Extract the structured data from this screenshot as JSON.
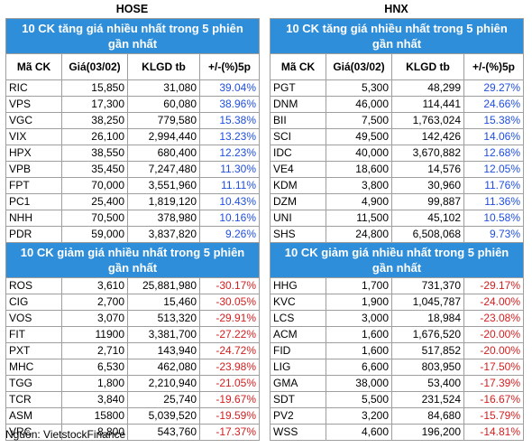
{
  "colors": {
    "title_bg": "#2f8ed9",
    "up": "#1f4fe0",
    "down": "#d42020"
  },
  "hose": {
    "name": "HOSE",
    "gain_title": "10 CK tăng giá nhiều nhất trong 5 phiên gần nhất",
    "loss_title": "10 CK giảm giá nhiều nhất trong 5 phiên gần nhất",
    "headers": [
      "Mã CK",
      "Giá(03/02)",
      "KLGD tb",
      "+/-(%)5p"
    ],
    "gainers": [
      [
        "RIC",
        "15,850",
        "31,080",
        "39.04%"
      ],
      [
        "VPS",
        "17,300",
        "60,080",
        "38.96%"
      ],
      [
        "VGC",
        "38,250",
        "779,580",
        "15.38%"
      ],
      [
        "VIX",
        "26,100",
        "2,994,440",
        "13.23%"
      ],
      [
        "HPX",
        "38,550",
        "680,400",
        "12.23%"
      ],
      [
        "VPB",
        "35,450",
        "7,247,480",
        "11.30%"
      ],
      [
        "FPT",
        "70,000",
        "3,551,960",
        "11.11%"
      ],
      [
        "PC1",
        "25,400",
        "1,819,120",
        "10.43%"
      ],
      [
        "NHH",
        "70,500",
        "378,980",
        "10.16%"
      ],
      [
        "PDR",
        "59,000",
        "3,837,820",
        "9.26%"
      ]
    ],
    "losers": [
      [
        "ROS",
        "3,610",
        "25,881,980",
        "-30.17%"
      ],
      [
        "CIG",
        "2,700",
        "15,460",
        "-30.05%"
      ],
      [
        "VOS",
        "3,070",
        "513,320",
        "-29.91%"
      ],
      [
        "FIT",
        "11900",
        "3,381,700",
        "-27.22%"
      ],
      [
        "PXT",
        "2,710",
        "143,940",
        "-24.72%"
      ],
      [
        "MHC",
        "6,530",
        "462,080",
        "-23.98%"
      ],
      [
        "TGG",
        "1,800",
        "2,210,940",
        "-21.05%"
      ],
      [
        "TCR",
        "3,840",
        "25,740",
        "-19.67%"
      ],
      [
        "ASM",
        "15800",
        "5,039,520",
        "-19.59%"
      ],
      [
        "VRC",
        "8,800",
        "543,760",
        "-17.37%"
      ]
    ]
  },
  "hnx": {
    "name": "HNX",
    "gain_title": "10 CK tăng giá nhiều nhất trong 5 phiên gần nhất",
    "loss_title": "10 CK giảm giá nhiều nhất trong 5 phiên gần nhất",
    "headers": [
      "Mã CK",
      "Giá(03/02)",
      "KLGD tb",
      "+/-(%)5p"
    ],
    "gainers": [
      [
        "PGT",
        "5,300",
        "48,299",
        "29.27%"
      ],
      [
        "DNM",
        "46,000",
        "114,441",
        "24.66%"
      ],
      [
        "BII",
        "7,500",
        "1,763,024",
        "15.38%"
      ],
      [
        "SCI",
        "49,500",
        "142,426",
        "14.06%"
      ],
      [
        "IDC",
        "40,000",
        "3,670,882",
        "12.68%"
      ],
      [
        "VE4",
        "18,600",
        "14,576",
        "12.05%"
      ],
      [
        "KDM",
        "3,800",
        "30,960",
        "11.76%"
      ],
      [
        "DZM",
        "4,900",
        "99,887",
        "11.36%"
      ],
      [
        "UNI",
        "11,500",
        "45,102",
        "10.58%"
      ],
      [
        "SHS",
        "24,800",
        "6,508,068",
        "9.73%"
      ]
    ],
    "losers": [
      [
        "HHG",
        "1,700",
        "731,370",
        "-29.17%"
      ],
      [
        "KVC",
        "1,900",
        "1,045,787",
        "-24.00%"
      ],
      [
        "LCS",
        "3,000",
        "18,984",
        "-23.08%"
      ],
      [
        "ACM",
        "1,600",
        "1,676,520",
        "-20.00%"
      ],
      [
        "FID",
        "1,600",
        "517,852",
        "-20.00%"
      ],
      [
        "LIG",
        "6,600",
        "803,950",
        "-17.50%"
      ],
      [
        "GMA",
        "38,000",
        "53,400",
        "-17.39%"
      ],
      [
        "SDT",
        "5,500",
        "231,524",
        "-16.67%"
      ],
      [
        "PV2",
        "3,200",
        "84,680",
        "-15.79%"
      ],
      [
        "WSS",
        "4,600",
        "196,200",
        "-14.81%"
      ]
    ]
  },
  "source": "Nguồn: VietstockFinance"
}
